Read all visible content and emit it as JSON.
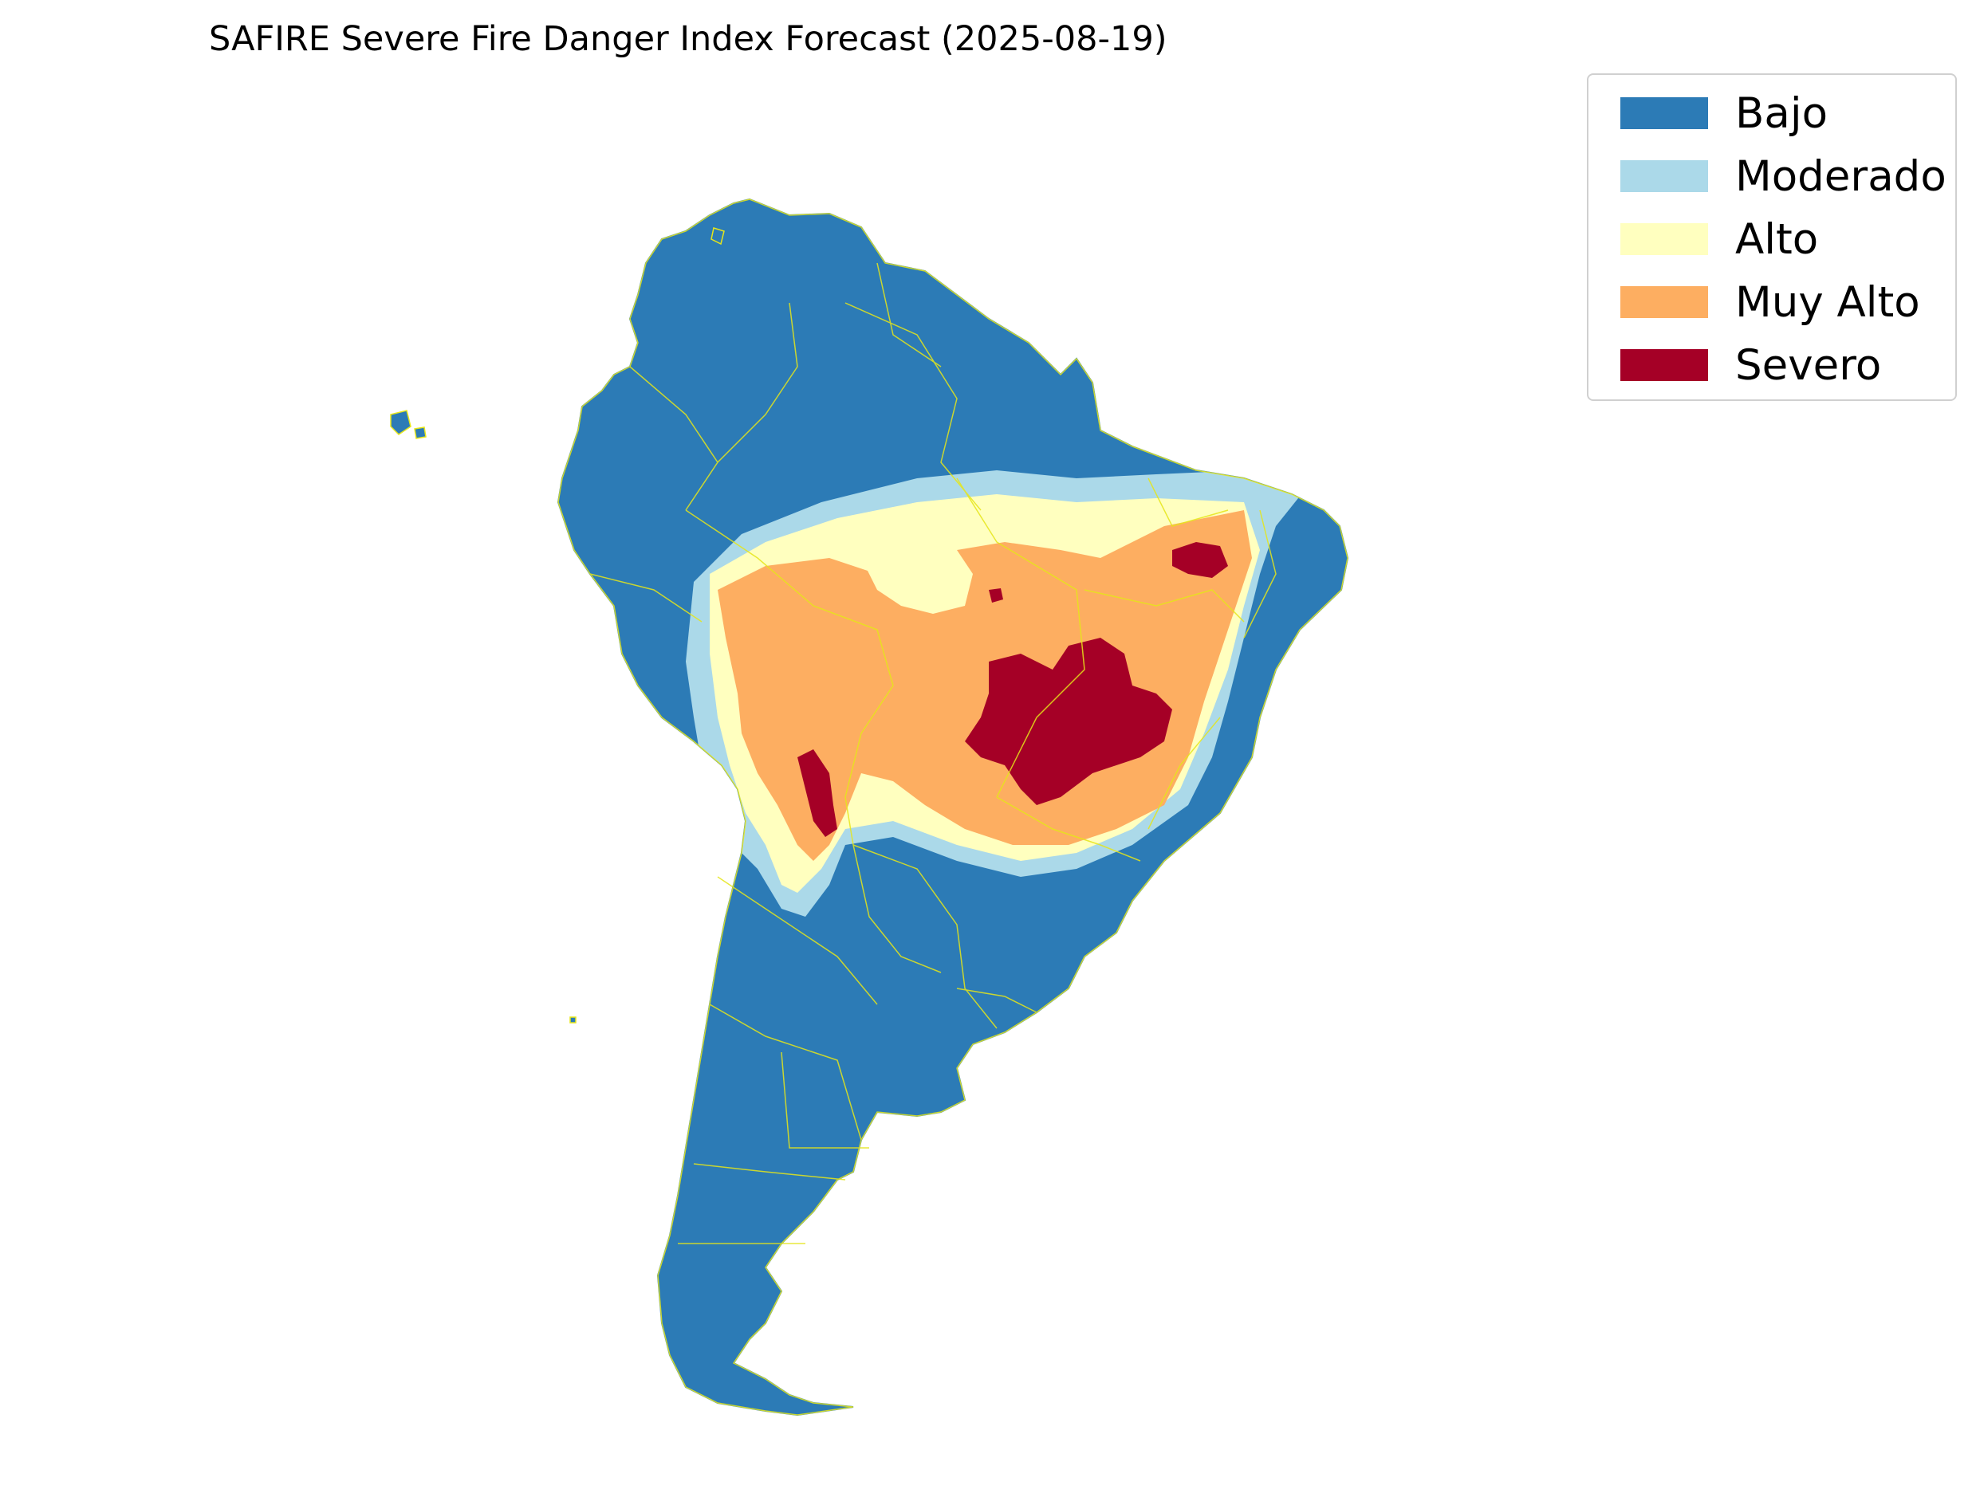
{
  "title": "SAFIRE Severe Fire Danger Index Forecast (2025-08-19)",
  "legend": {
    "items": [
      {
        "label": "Bajo",
        "color": "#2c7bb6"
      },
      {
        "label": "Moderado",
        "color": "#abd9e9"
      },
      {
        "label": "Alto",
        "color": "#ffffbf"
      },
      {
        "label": "Muy Alto",
        "color": "#fdae61"
      },
      {
        "label": "Severo",
        "color": "#a50026"
      }
    ]
  },
  "map": {
    "region": "South America",
    "border_color": "#e6e619",
    "land_base_class": "Bajo"
  }
}
